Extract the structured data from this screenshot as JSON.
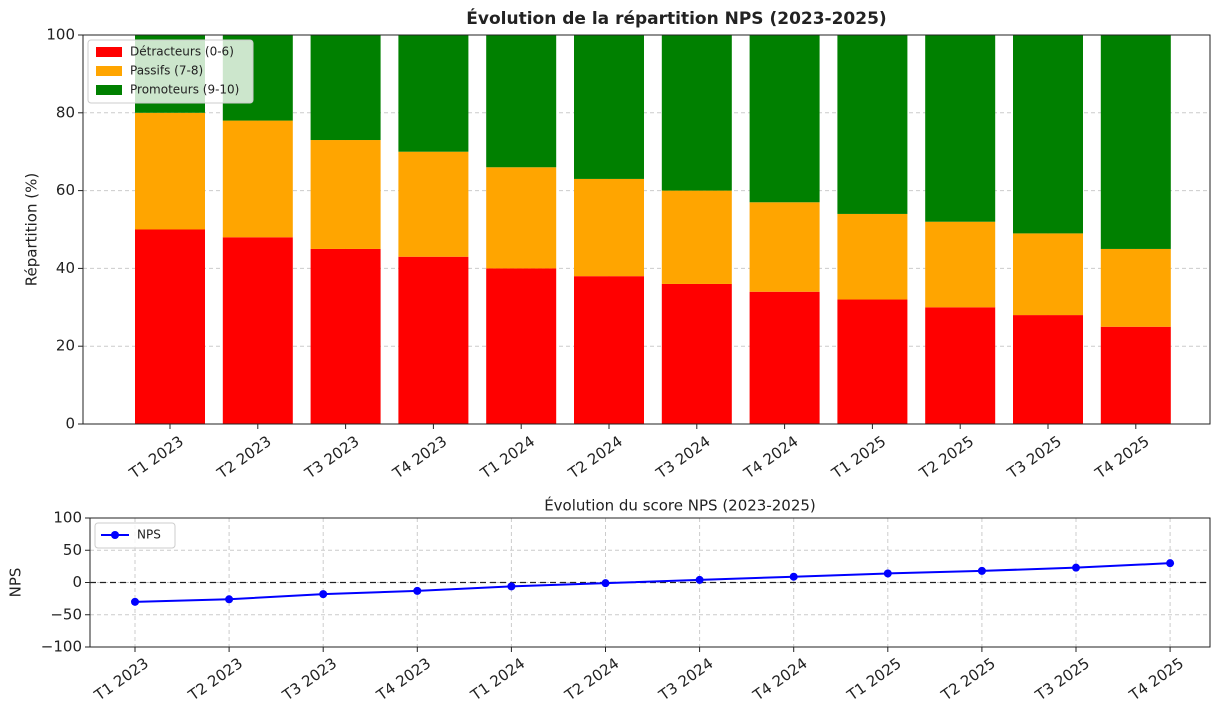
{
  "chart_data": [
    {
      "type": "bar",
      "stacked": true,
      "title": "Évolution de la répartition NPS (2023-2025)",
      "y_label": "Répartition (%)",
      "categories": [
        "T1 2023",
        "T2 2023",
        "T3 2023",
        "T4 2023",
        "T1 2024",
        "T2 2024",
        "T3 2024",
        "T4 2024",
        "T1 2025",
        "T2 2025",
        "T3 2025",
        "T4 2025"
      ],
      "series": [
        {
          "name": "Détracteurs (0-6)",
          "color": "#ff0000",
          "values": [
            50,
            48,
            45,
            43,
            40,
            38,
            36,
            34,
            32,
            30,
            28,
            25
          ]
        },
        {
          "name": "Passifs (7-8)",
          "color": "#ffa500",
          "values": [
            30,
            30,
            28,
            27,
            26,
            25,
            24,
            23,
            22,
            22,
            21,
            20
          ]
        },
        {
          "name": "Promoteurs (9-10)",
          "color": "#008000",
          "values": [
            20,
            22,
            27,
            30,
            34,
            37,
            40,
            43,
            46,
            48,
            51,
            55
          ]
        }
      ],
      "ylim": [
        0,
        100
      ],
      "yticks": [
        0,
        20,
        40,
        60,
        80,
        100
      ],
      "grid": true,
      "legend": "upper left"
    },
    {
      "type": "line",
      "title": "Évolution du score NPS (2023-2025)",
      "y_label": "NPS",
      "categories": [
        "T1 2023",
        "T2 2023",
        "T3 2023",
        "T4 2023",
        "T1 2024",
        "T2 2024",
        "T3 2024",
        "T4 2024",
        "T1 2025",
        "T2 2025",
        "T3 2025",
        "T4 2025"
      ],
      "series": [
        {
          "name": "NPS",
          "color": "#0000ff",
          "values": [
            -30,
            -26,
            -18,
            -13,
            -6,
            -1,
            4,
            9,
            14,
            18,
            23,
            30
          ]
        }
      ],
      "ylim": [
        -100,
        100
      ],
      "yticks": [
        {
          "value": -100,
          "label": "−100"
        },
        {
          "value": -50,
          "label": "−50"
        },
        0,
        50,
        100
      ],
      "reference_line": 0,
      "grid": true,
      "legend": "upper left"
    }
  ]
}
